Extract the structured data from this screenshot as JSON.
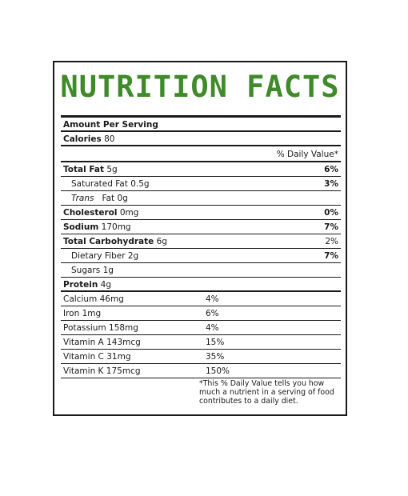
{
  "colors": {
    "title_green": "#3f8a2a",
    "text": "#1a1a1a",
    "border": "#1a1a1a",
    "background": "#ffffff"
  },
  "title": "NUTRITION FACTS",
  "amount_per_serving": "Amount Per Serving",
  "calories": {
    "label": "Calories",
    "value": "80"
  },
  "daily_value_header": "% Daily Value*",
  "nutrients": [
    {
      "label": "Total Fat",
      "amount": "5g",
      "pct": "6%"
    },
    {
      "label": "Saturated Fat",
      "amount": "0.5g",
      "pct": "3%"
    },
    {
      "label": "Trans",
      "amount": "Fat 0g",
      "pct": ""
    },
    {
      "label": "Cholesterol",
      "amount": "0mg",
      "pct": "0%"
    },
    {
      "label": "Sodium",
      "amount": "170mg",
      "pct": "7%"
    },
    {
      "label": "Total Carbohydrate",
      "amount": "6g",
      "pct": "2%"
    },
    {
      "label": "Dietary Fiber",
      "amount": "2g",
      "pct": "7%"
    },
    {
      "label": "Sugars",
      "amount": "1g",
      "pct": ""
    },
    {
      "label": "Protein",
      "amount": "4g",
      "pct": ""
    }
  ],
  "minerals": [
    {
      "label": "Calcium 46mg",
      "pct": "4%"
    },
    {
      "label": "Iron 1mg",
      "pct": "6%"
    },
    {
      "label": "Potassium 158mg",
      "pct": "4%"
    },
    {
      "label": "Vitamin A 143mcg",
      "pct": "15%"
    },
    {
      "label": "Vitamin C 31mg",
      "pct": "35%"
    },
    {
      "label": "Vitamin K 175mcg",
      "pct": "150%"
    }
  ],
  "footnote": "*This % Daily Value tells you how much a nutrient in a serving of food contributes to a daily diet."
}
